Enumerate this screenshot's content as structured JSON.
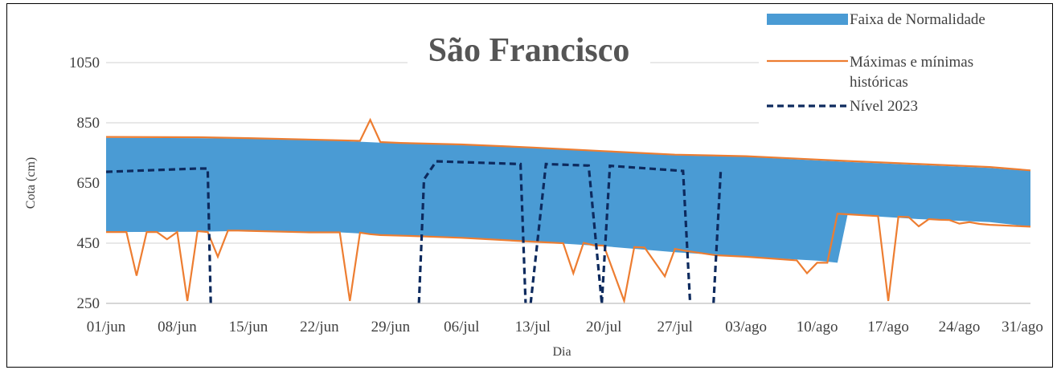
{
  "chart_data": {
    "type": "area",
    "title": "São Francisco",
    "xlabel": "Dia",
    "ylabel": "Cota (cm)",
    "ylim": [
      250,
      1050
    ],
    "yticks": [
      250,
      450,
      650,
      850,
      1050
    ],
    "xticks": [
      "01/jun",
      "08/jun",
      "15/jun",
      "22/jun",
      "29/jun",
      "06/jul",
      "13/jul",
      "20/jul",
      "27/jul",
      "03/ago",
      "10/ago",
      "17/ago",
      "24/ago",
      "31/ago"
    ],
    "x_range_days": [
      0,
      91
    ],
    "grid": "horizontal",
    "legend_position": "top-right",
    "colors": {
      "band": "#4a9bd4",
      "historic": "#ed7d31",
      "level": "#0d2a5e",
      "grid": "#d9d9d9"
    },
    "series": [
      {
        "name": "Faixa de Normalidade",
        "kind": "band",
        "x": [
          0,
          9,
          14,
          23,
          29,
          35,
          42,
          49,
          56,
          63,
          70,
          72,
          73,
          80,
          87,
          91
        ],
        "upper": [
          800,
          799,
          797,
          790,
          781,
          776,
          766,
          754,
          742,
          737,
          725,
          722,
          720,
          710,
          700,
          690
        ],
        "lower": [
          487,
          488,
          491,
          486,
          475,
          468,
          455,
          440,
          420,
          405,
          392,
          385,
          545,
          530,
          520,
          505
        ]
      },
      {
        "name": "Máximas e mínimas históricas",
        "kind": "line",
        "segments": [
          {
            "x": [
              0,
              9,
              14,
              23,
              25,
              26,
              27,
              29,
              35,
              42,
              49,
              56,
              63,
              70,
              73,
              80,
              87,
              91
            ],
            "y": [
              803,
              802,
              799,
              792,
              790,
              860,
              786,
              783,
              778,
              768,
              756,
              744,
              739,
              728,
              723,
              713,
              703,
              692
            ]
          },
          {
            "x": [
              0,
              2,
              3,
              4,
              5,
              6,
              7,
              8,
              9,
              10,
              11,
              12,
              13,
              14,
              20,
              23,
              24,
              25,
              26,
              27,
              30,
              35,
              42,
              45,
              46,
              47,
              48,
              49,
              51,
              52,
              53,
              55,
              56,
              57,
              58,
              60,
              63,
              68,
              69,
              70,
              71,
              72,
              73,
              76,
              77,
              78,
              79,
              80,
              81,
              82,
              83,
              84,
              85,
              86,
              87,
              91
            ],
            "y": [
              487,
              487,
              342,
              487,
              487,
              463,
              487,
              258,
              490,
              487,
              405,
              492,
              492,
              491,
              486,
              486,
              258,
              485,
              480,
              477,
              474,
              468,
              455,
              450,
              350,
              451,
              443,
              442,
              258,
              437,
              436,
              340,
              431,
              425,
              420,
              410,
              405,
              393,
              350,
              385,
              385,
              548,
              546,
              540,
              258,
              538,
              537,
              506,
              530,
              528,
              527,
              515,
              520,
              514,
              511,
              505
            ]
          }
        ]
      },
      {
        "name": "Nível 2023",
        "kind": "dashed",
        "segments": [
          {
            "x": [
              0,
              9,
              10,
              10.3
            ],
            "y": [
              687,
              698,
              698,
              250
            ]
          },
          {
            "x": [
              30.8,
              31.3,
              32.5,
              40.8,
              41.3
            ],
            "y": [
              250,
              662,
              722,
              713,
              250
            ]
          },
          {
            "x": [
              41.8,
              43.3,
              47.5,
              48.8
            ],
            "y": [
              250,
              713,
              708,
              250
            ]
          },
          {
            "x": [
              48.8,
              49.6,
              56.8,
              57.5
            ],
            "y": [
              250,
              707,
              690,
              250
            ]
          },
          {
            "x": [
              59.8,
              60.5
            ],
            "y": [
              250,
              688
            ]
          }
        ]
      }
    ]
  }
}
